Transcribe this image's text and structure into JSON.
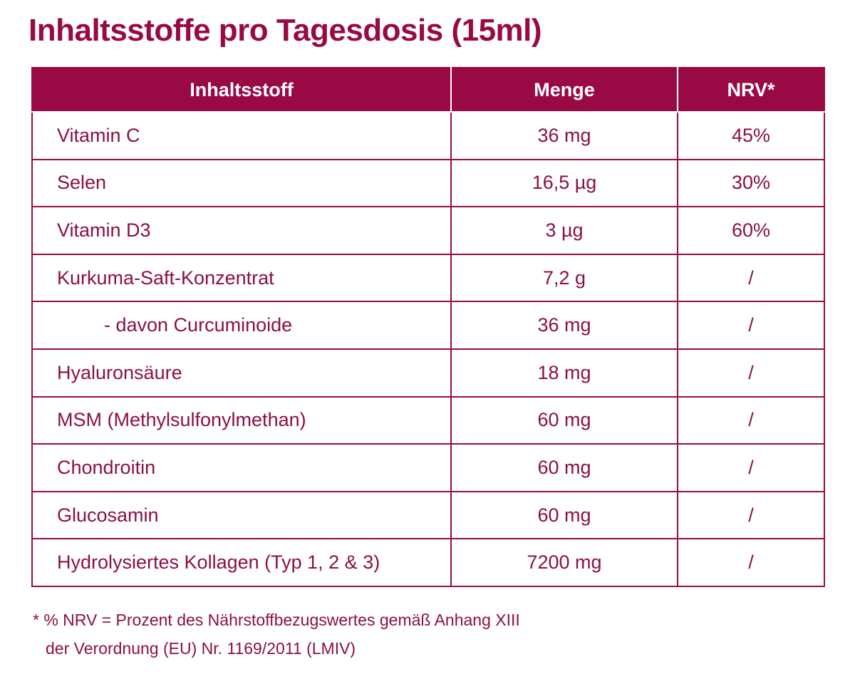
{
  "title": "Inhaltsstoffe pro Tagesdosis (15ml)",
  "table": {
    "header": [
      "Inhaltsstoff",
      "Menge",
      "NRV*"
    ],
    "rows": [
      [
        "Vitamin C",
        "36 mg",
        "45%"
      ],
      [
        "Selen",
        "16,5 µg",
        "30%"
      ],
      [
        "Vitamin D3",
        "3 µg",
        "60%"
      ],
      [
        "Kurkuma-Saft-Konzentrat",
        "7,2 g",
        "/"
      ],
      [
        "- davon Curcuminoide",
        "36 mg",
        "/"
      ],
      [
        "Hyaluronsäure",
        "18 mg",
        "/"
      ],
      [
        "MSM (Methylsulfonylmethan)",
        "60 mg",
        "/"
      ],
      [
        "Chondroitin",
        "60 mg",
        "/"
      ],
      [
        "Glucosamin",
        "60 mg",
        "/"
      ],
      [
        "Hydrolysiertes Kollagen (Typ 1, 2 & 3)",
        "7200 mg",
        "/"
      ]
    ]
  },
  "footnote": [
    "* % NRV = Prozent des Nährstoffbezugswertes gemäß Anhang XIII",
    "der Verordnung (EU) Nr. 1169/2011 (LMIV)"
  ]
}
